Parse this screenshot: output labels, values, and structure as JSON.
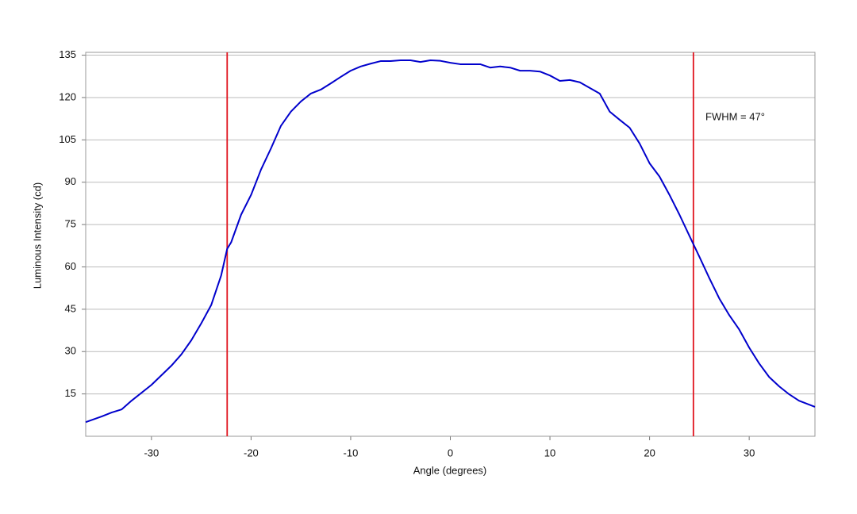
{
  "chart_data": {
    "type": "line",
    "xlabel": "Angle (degrees)",
    "ylabel": "Luminous Intensity (cd)",
    "annotation": "FWHM = 47°",
    "x": [
      -36.6,
      -35,
      -34,
      -33,
      -32,
      -30,
      -28,
      -27,
      -26,
      -25,
      -24,
      -23,
      -22.4,
      -22,
      -21,
      -20,
      -19,
      -18,
      -17,
      -16,
      -15,
      -14,
      -13,
      -12,
      -11,
      -10,
      -9,
      -8,
      -7,
      -6,
      -5,
      -4,
      -3,
      -2,
      -1,
      0,
      1,
      2,
      3,
      4,
      5,
      6,
      7,
      8,
      9,
      10,
      11,
      12,
      13,
      14,
      15,
      16,
      17,
      18,
      19,
      20,
      21,
      22,
      23,
      24,
      25,
      26,
      27,
      28,
      29,
      30,
      31,
      32,
      33,
      34,
      35,
      36.6
    ],
    "values": [
      5,
      7,
      8.4,
      9.5,
      12.6,
      18.2,
      25,
      29,
      34,
      40,
      46.5,
      57,
      66.4,
      68.7,
      78.5,
      85.5,
      94.5,
      102,
      110,
      115,
      118.6,
      121.4,
      122.8,
      125,
      127.3,
      129.5,
      131,
      132,
      132.9,
      132.9,
      133.2,
      133.2,
      132.6,
      133.2,
      133,
      132.3,
      131.8,
      131.8,
      131.8,
      130.6,
      131,
      130.6,
      129.5,
      129.5,
      129.2,
      127.8,
      125.9,
      126.2,
      125.4,
      123.4,
      121.4,
      115,
      112.1,
      109.3,
      103.7,
      96.7,
      92,
      85.5,
      78.5,
      71,
      63.6,
      56,
      48.8,
      42.9,
      37.8,
      31.4,
      25.8,
      21,
      17.7,
      14.9,
      12.6,
      10.4
    ],
    "color": "#0000cc",
    "vlines": {
      "values": [
        -22.4,
        24.4
      ],
      "color": "#e0141e"
    },
    "xlim": [
      -36.6,
      36.6
    ],
    "ylim": [
      0,
      136
    ],
    "xticks": [
      -30,
      -20,
      -10,
      0,
      10,
      20,
      30
    ],
    "yticks": [
      15,
      30,
      45,
      60,
      75,
      90,
      105,
      120,
      135
    ],
    "grid": true
  }
}
